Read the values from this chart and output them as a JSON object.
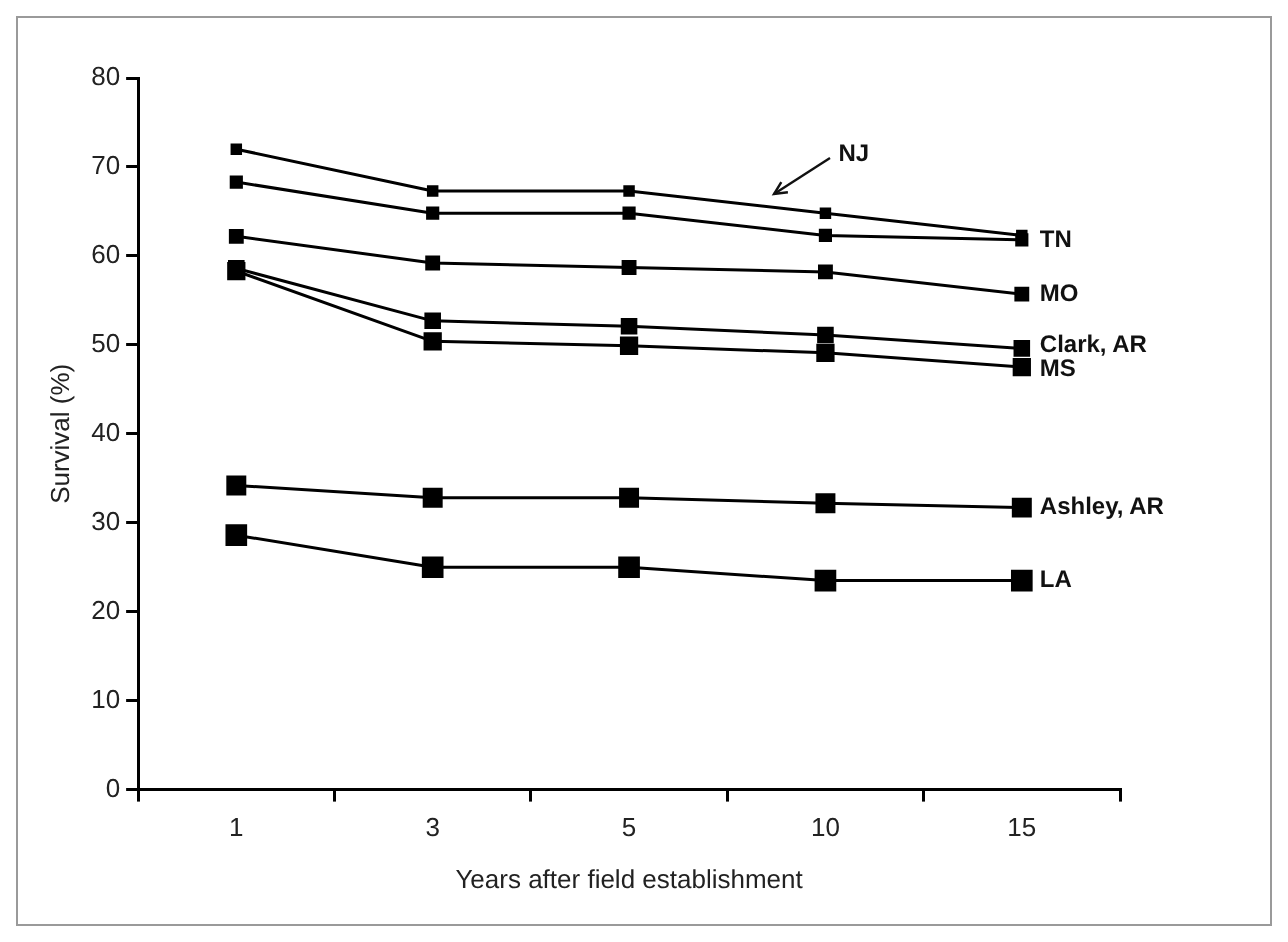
{
  "chart_data": {
    "type": "line",
    "xlabel": "Years after field establishment",
    "ylabel": "Survival (%)",
    "categories": [
      "1",
      "3",
      "5",
      "10",
      "15"
    ],
    "ylim": [
      0,
      80
    ],
    "yticks": [
      0,
      10,
      20,
      30,
      40,
      50,
      60,
      70,
      80
    ],
    "grid": false,
    "legend": false,
    "marker": "square",
    "line_style": "solid",
    "series": [
      {
        "name": "NJ",
        "color": "#000000",
        "values": [
          72,
          67.3,
          67.3,
          64.8,
          62.3
        ]
      },
      {
        "name": "TN",
        "color": "#000000",
        "values": [
          68.3,
          64.8,
          64.8,
          62.3,
          61.8
        ]
      },
      {
        "name": "MO",
        "color": "#000000",
        "values": [
          62.2,
          59.2,
          58.7,
          58.2,
          55.7
        ]
      },
      {
        "name": "Clark, AR",
        "color": "#000000",
        "values": [
          58.6,
          52.7,
          52.1,
          51.1,
          49.6
        ]
      },
      {
        "name": "MS",
        "color": "#000000",
        "values": [
          58.3,
          50.4,
          49.9,
          49.1,
          47.5
        ]
      },
      {
        "name": "Ashley, AR",
        "color": "#000000",
        "values": [
          34.2,
          32.8,
          32.8,
          32.2,
          31.7
        ]
      },
      {
        "name": "LA",
        "color": "#000000",
        "values": [
          28.6,
          25,
          25,
          23.5,
          23.5
        ]
      }
    ]
  }
}
